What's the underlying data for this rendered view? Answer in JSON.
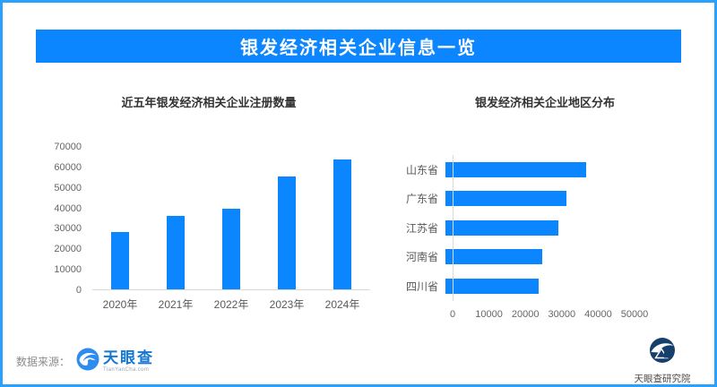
{
  "page_title": "银发经济相关企业信息一览",
  "colors": {
    "accent": "#0B86FF",
    "border": "#2AA1FF",
    "tyc_blue": "#1677D2",
    "research_navy": "#16406B"
  },
  "footer": {
    "source_label": "数据来源：",
    "tyc_name": "天眼查",
    "tyc_sub": "TianYanCha.com",
    "research_name": "天眼查研究院"
  },
  "chart_data": [
    {
      "type": "bar",
      "title": "近五年银发经济相关企业注册数量",
      "categories": [
        "2020年",
        "2021年",
        "2022年",
        "2023年",
        "2024年"
      ],
      "values": [
        27900,
        36000,
        39500,
        55300,
        63400
      ],
      "xlabel": "",
      "ylabel": "",
      "ylim": [
        0,
        70000
      ],
      "yticks": [
        0,
        10000,
        20000,
        30000,
        40000,
        50000,
        60000,
        70000
      ],
      "grid": false,
      "legend": false,
      "bar_color": "#0B86FF"
    },
    {
      "type": "bar",
      "orientation": "horizontal",
      "title": "银发经济相关企业地区分布",
      "categories": [
        "山东省",
        "广东省",
        "江苏省",
        "河南省",
        "四川省"
      ],
      "values": [
        38700,
        33300,
        31000,
        26500,
        25500
      ],
      "xlabel": "",
      "ylabel": "",
      "xlim": [
        0,
        50000
      ],
      "xticks": [
        0,
        10000,
        20000,
        30000,
        40000,
        50000
      ],
      "grid": false,
      "legend": false,
      "bar_color": "#0B86FF"
    }
  ]
}
